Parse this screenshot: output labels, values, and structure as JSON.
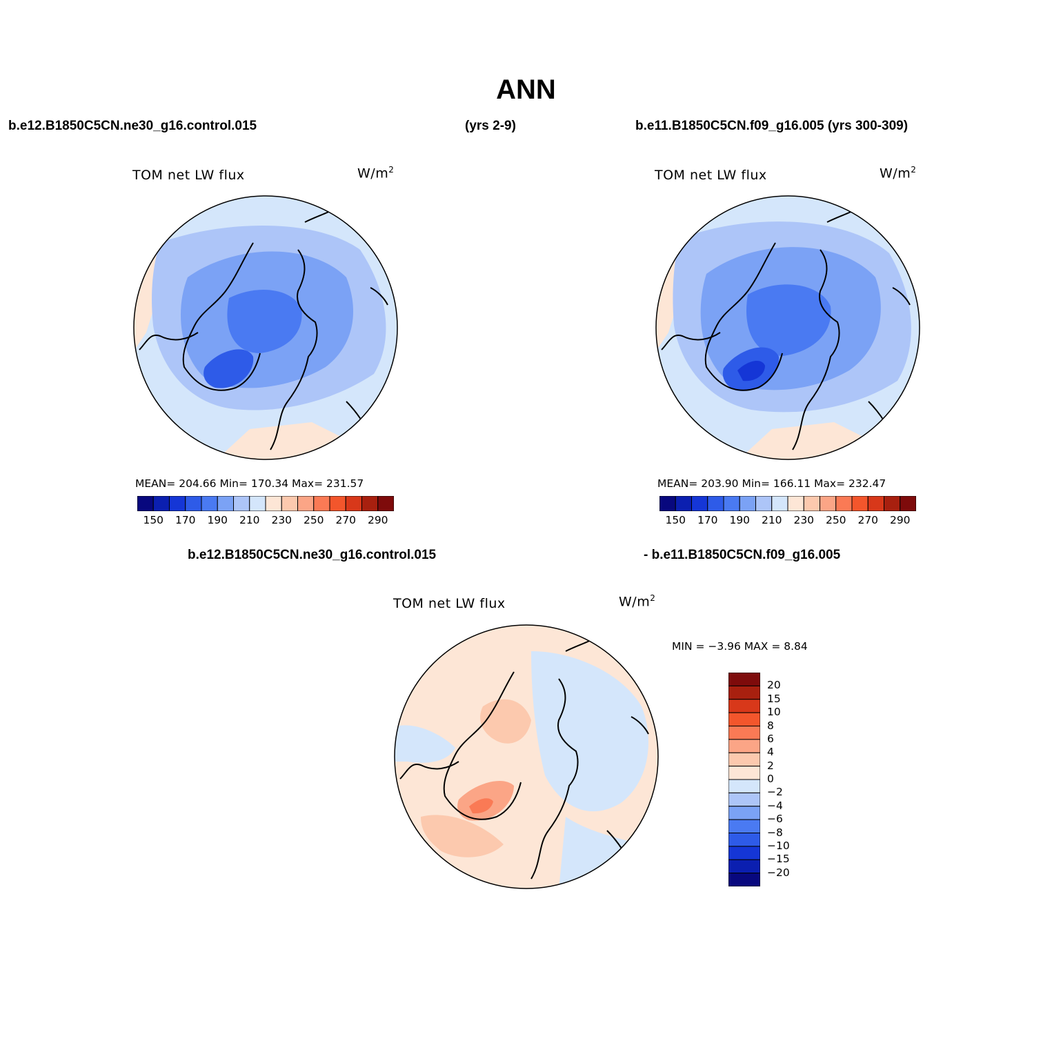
{
  "title": "ANN",
  "headers": {
    "top_left": "b.e12.B1850C5CN.ne30_g16.control.015",
    "top_mid": "(yrs 2-9)",
    "top_right": "b.e11.B1850C5CN.f09_g16.005 (yrs 300-309)",
    "diff_left": "b.e12.B1850C5CN.ne30_g16.control.015",
    "diff_right": "- b.e11.B1850C5CN.f09_g16.005"
  },
  "panels": [
    {
      "variable": "TOM net LW flux",
      "units": "W/m",
      "units_sup": "2",
      "stats_text": "MEAN= 204.66   Min= 170.34   Max= 231.57",
      "mean": 204.66,
      "min": 170.34,
      "max": 231.57
    },
    {
      "variable": "TOM net LW flux",
      "units": "W/m",
      "units_sup": "2",
      "stats_text": "MEAN= 203.90   Min= 166.11   Max= 232.47",
      "mean": 203.9,
      "min": 166.11,
      "max": 232.47
    },
    {
      "variable": "TOM net LW flux",
      "units": "W/m",
      "units_sup": "2",
      "stats_text": "MIN =   −3.96  MAX =    8.84",
      "min": -3.96,
      "max": 8.84
    }
  ],
  "colorbar_abs": {
    "levels": [
      150,
      160,
      170,
      180,
      190,
      200,
      210,
      220,
      230,
      240,
      250,
      260,
      270,
      280,
      290
    ],
    "labels": [
      "150",
      "170",
      "190",
      "210",
      "230",
      "250",
      "270",
      "290"
    ],
    "colors": [
      "#08087e",
      "#0b1fb0",
      "#1536d6",
      "#2e5be8",
      "#4a7af2",
      "#7ba2f5",
      "#adc5f8",
      "#d4e6fb",
      "#fde6d6",
      "#fcc9ae",
      "#fba586",
      "#fa7a55",
      "#f3562c",
      "#d8381a",
      "#a8200f",
      "#7e0b0b"
    ]
  },
  "colorbar_diff": {
    "labels": [
      "20",
      "15",
      "10",
      "8",
      "6",
      "4",
      "2",
      "0",
      "−2",
      "−4",
      "−6",
      "−8",
      "−10",
      "−15",
      "−20"
    ],
    "colors": [
      "#7e0b0b",
      "#a8200f",
      "#d8381a",
      "#f3562c",
      "#fa7a55",
      "#fba586",
      "#fcc9ae",
      "#fde6d6",
      "#d4e6fb",
      "#adc5f8",
      "#7ba2f5",
      "#4a7af2",
      "#2e5be8",
      "#1536d6",
      "#0b1fb0",
      "#08087e"
    ]
  }
}
